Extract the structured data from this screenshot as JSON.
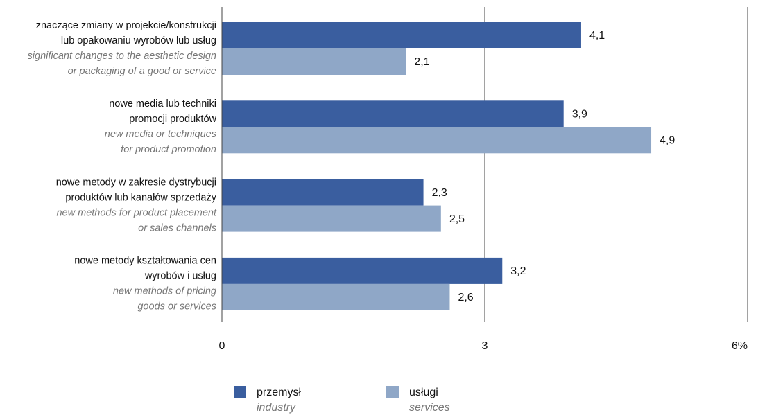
{
  "chart_data": {
    "type": "hbar",
    "categories": [
      {
        "pl": [
          "znaczące zmiany w projekcie/konstrukcji",
          "lub opakowaniu wyrobów lub usług"
        ],
        "en": [
          "significant changes to the aesthetic design",
          "or packaging of a good or service"
        ]
      },
      {
        "pl": [
          "nowe media lub techniki",
          "promocji produktów"
        ],
        "en": [
          "new media or techniques",
          "for product promotion"
        ]
      },
      {
        "pl": [
          "nowe metody w zakresie dystrybucji",
          "produktów lub kanałów sprzedaży"
        ],
        "en": [
          "new methods for product placement",
          "or sales channels"
        ]
      },
      {
        "pl": [
          "nowe metody kształtowania cen",
          "wyrobów i usług"
        ],
        "en": [
          "new methods of pricing",
          "goods or services"
        ]
      }
    ],
    "series": [
      {
        "name": "przemysł",
        "name_en": "industry",
        "color": "#3a5e9f",
        "values": [
          4.1,
          3.9,
          2.3,
          3.2
        ],
        "value_labels": [
          "4,1",
          "3,9",
          "2,3",
          "3,2"
        ]
      },
      {
        "name": "usługi",
        "name_en": "services",
        "color": "#8fa7c7",
        "values": [
          2.1,
          4.9,
          2.5,
          2.6
        ],
        "value_labels": [
          "2,1",
          "4,9",
          "2,5",
          "2,6"
        ]
      }
    ],
    "xlim": [
      0,
      6
    ],
    "xticks": [
      0,
      3,
      {
        "value": 6,
        "label": "6%"
      }
    ],
    "grid": true
  }
}
